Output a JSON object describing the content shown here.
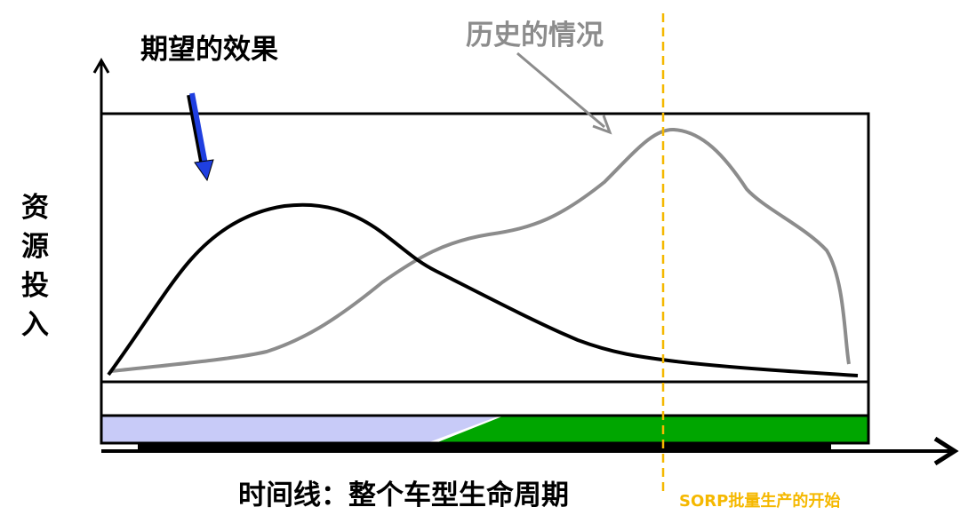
{
  "labels": {
    "expected_effect": "期望的效果",
    "historical_situation": "历史的情况",
    "y_axis": "资源投入",
    "x_axis": "时间线：整个车型生命周期",
    "sorp_marker": "SORP批量生产的开始"
  },
  "colors": {
    "expected_curve": "#000000",
    "historical_curve": "#8c8c8c",
    "sorp_line": "#f5b800",
    "expected_arrow": "#1f3fe0",
    "phase_early": "#c8cbf8",
    "phase_late": "#00a600"
  }
}
